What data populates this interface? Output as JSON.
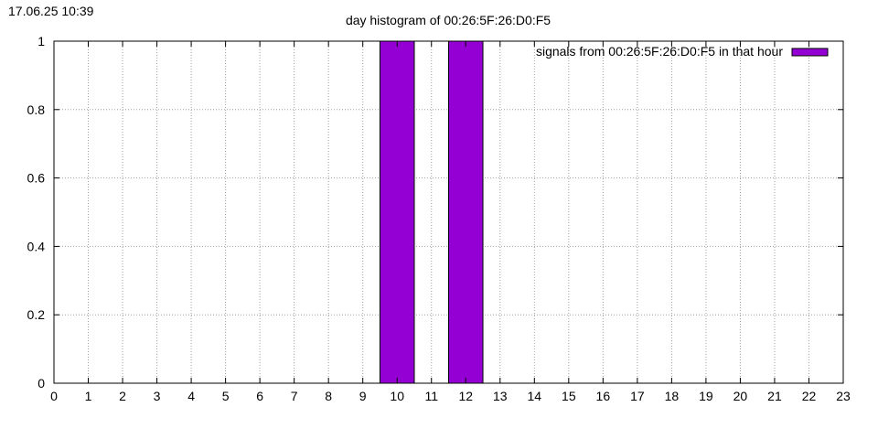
{
  "timestamp": "17.06.25 10:39",
  "chart_data": {
    "type": "bar",
    "title": "day histogram of 00:26:5F:26:D0:F5",
    "xlabel": "",
    "ylabel": "",
    "xlim": [
      0,
      23
    ],
    "ylim": [
      0,
      1
    ],
    "x_ticks": [
      "0",
      "1",
      "2",
      "3",
      "4",
      "5",
      "6",
      "7",
      "8",
      "9",
      "10",
      "11",
      "12",
      "13",
      "14",
      "15",
      "16",
      "17",
      "18",
      "19",
      "20",
      "21",
      "22",
      "23"
    ],
    "y_ticks": [
      "0",
      "0.2",
      "0.4",
      "0.6",
      "0.8",
      "1"
    ],
    "grid": true,
    "legend_position": "top-right",
    "series": [
      {
        "name": "signals from 00:26:5F:26:D0:F5 in that hour",
        "color": "#9400d3",
        "x": [
          0,
          1,
          2,
          3,
          4,
          5,
          6,
          7,
          8,
          9,
          10,
          11,
          12,
          13,
          14,
          15,
          16,
          17,
          18,
          19,
          20,
          21,
          22,
          23
        ],
        "values": [
          0,
          0,
          0,
          0,
          0,
          0,
          0,
          0,
          0,
          0,
          1,
          0,
          1,
          0,
          0,
          0,
          0,
          0,
          0,
          0,
          0,
          0,
          0,
          0
        ]
      }
    ]
  }
}
